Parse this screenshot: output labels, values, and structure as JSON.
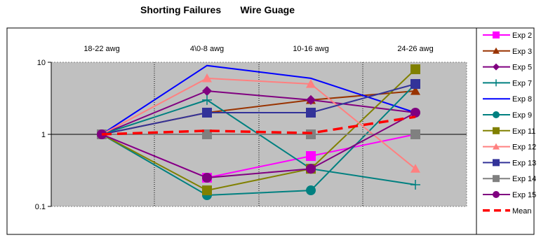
{
  "chart_data": {
    "type": "line",
    "title": "Shorting Failures       Wire Guage",
    "categories": [
      "18-22 awg",
      "4\\0-8 awg",
      "10-16 awg",
      "24-26 awg"
    ],
    "y_scale": "log",
    "ylim": [
      0.1,
      10
    ],
    "y_ticks": [
      "10",
      "1",
      "0.1"
    ],
    "x_axis_position": "top",
    "grid": "vertical dotted",
    "legend_position": "right",
    "plot_background": "#c0c0c0",
    "series": [
      {
        "name": "Exp 2",
        "color": "#ff00ff",
        "marker": "square",
        "values": [
          1,
          0.25,
          0.5,
          1
        ]
      },
      {
        "name": "Exp 3",
        "color": "#993300",
        "marker": "triangle",
        "values": [
          1,
          2,
          3,
          4
        ]
      },
      {
        "name": "Exp 5",
        "color": "#800080",
        "marker": "diamond",
        "values": [
          1,
          4,
          3,
          2
        ]
      },
      {
        "name": "Exp 7",
        "color": "#008080",
        "marker": "plus",
        "values": [
          1,
          3,
          0.333,
          0.2
        ]
      },
      {
        "name": "Exp 8",
        "color": "#0000ff",
        "marker": "none",
        "values": [
          1,
          9,
          6,
          2
        ]
      },
      {
        "name": "Exp 9",
        "color": "#008080",
        "marker": "circle",
        "values": [
          1,
          0.143,
          0.167,
          5
        ]
      },
      {
        "name": "Exp 11",
        "color": "#808000",
        "marker": "square",
        "values": [
          1,
          0.167,
          0.333,
          8
        ]
      },
      {
        "name": "Exp 12",
        "color": "#ff8080",
        "marker": "triangle",
        "values": [
          1,
          6,
          5,
          0.333
        ]
      },
      {
        "name": "Exp 13",
        "color": "#333399",
        "marker": "square",
        "values": [
          1,
          2,
          2,
          5
        ]
      },
      {
        "name": "Exp 14",
        "color": "#808080",
        "marker": "square",
        "values": [
          1,
          1,
          1,
          1
        ]
      },
      {
        "name": "Exp 15",
        "color": "#800080",
        "marker": "circle",
        "values": [
          1,
          0.25,
          0.333,
          2
        ]
      },
      {
        "name": "Mean",
        "color": "#ff0000",
        "marker": "none",
        "dashed": true,
        "values": [
          1,
          1.12,
          1.04,
          1.75
        ]
      }
    ]
  }
}
